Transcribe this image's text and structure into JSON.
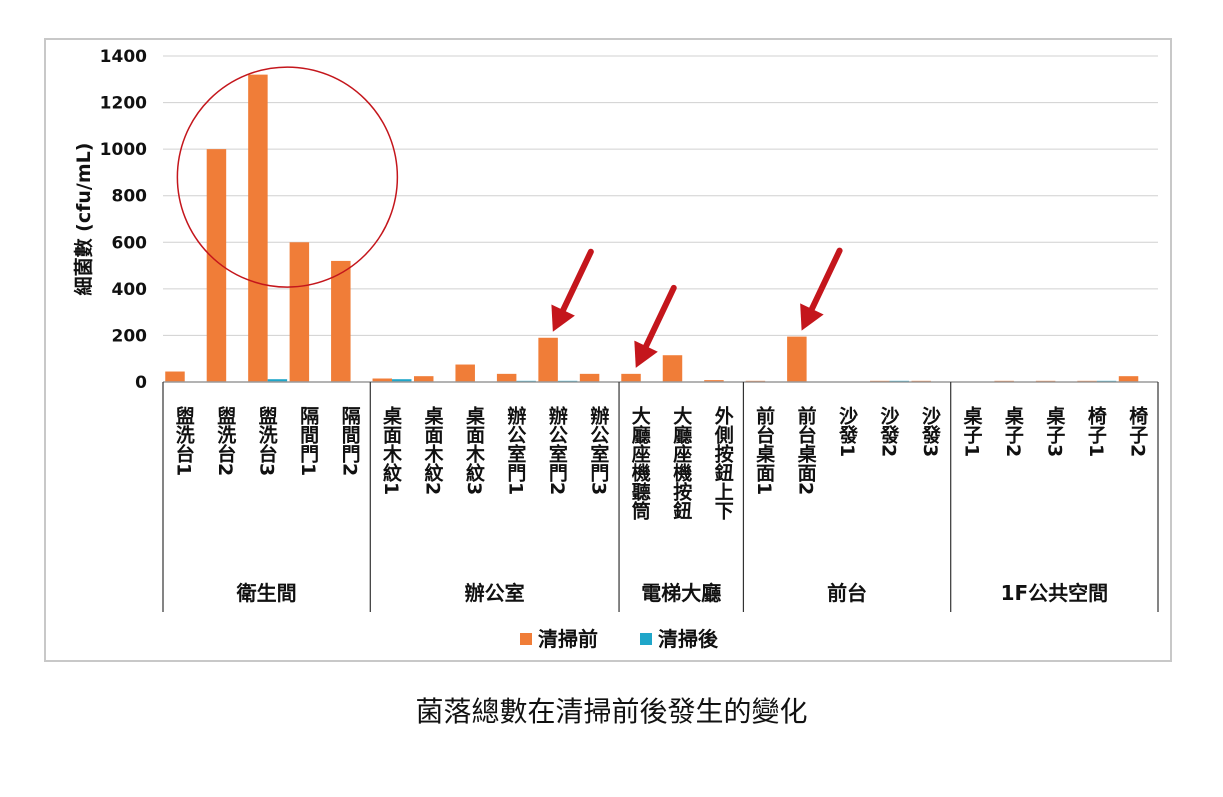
{
  "caption": "菌落總數在清掃前後發生的變化",
  "colors": {
    "before": "#F07D38",
    "after": "#1FA6C9",
    "annotation": "#C4161C"
  },
  "chart_data": {
    "type": "bar",
    "ylabel": "細菌數 (cfu/mL)",
    "ylim": [
      0,
      1400
    ],
    "yticks": [
      0,
      200,
      400,
      600,
      800,
      1000,
      1200,
      1400
    ],
    "grid": true,
    "legend_position": "bottom",
    "categories": [
      "盥洗台1",
      "盥洗台2",
      "盥洗台3",
      "隔間門1",
      "隔間門2",
      "桌面木紋1",
      "桌面木紋2",
      "桌面木紋3",
      "辦公室門1",
      "辦公室門2",
      "辦公室門3",
      "大廳座機聽筒",
      "大廳座機按鈕",
      "外側按鈕上下",
      "前台桌面1",
      "前台桌面2",
      "沙發1",
      "沙發2",
      "沙發3",
      "桌子1",
      "桌子2",
      "桌子3",
      "椅子1",
      "椅子2"
    ],
    "groups": [
      {
        "label": "衛生間",
        "count": 5
      },
      {
        "label": "辦公室",
        "count": 6
      },
      {
        "label": "電梯大廳",
        "count": 3
      },
      {
        "label": "前台",
        "count": 5
      },
      {
        "label": "1F公共空間",
        "count": 5
      }
    ],
    "series": [
      {
        "name": "清掃前",
        "values": [
          45,
          1000,
          1320,
          600,
          520,
          15,
          25,
          75,
          35,
          190,
          35,
          35,
          115,
          8,
          5,
          195,
          0,
          5,
          5,
          0,
          5,
          5,
          5,
          25
        ]
      },
      {
        "name": "清掃後",
        "values": [
          0,
          0,
          12,
          0,
          0,
          12,
          0,
          0,
          5,
          5,
          0,
          0,
          0,
          0,
          0,
          0,
          0,
          5,
          0,
          0,
          0,
          0,
          5,
          0
        ]
      }
    ],
    "annotations": {
      "circle_around": [
        "盥洗台2",
        "盥洗台3",
        "隔間門1",
        "隔間門2"
      ],
      "arrows_to": [
        "辦公室門2",
        "大廳座機聽筒",
        "前台桌面2"
      ]
    }
  }
}
